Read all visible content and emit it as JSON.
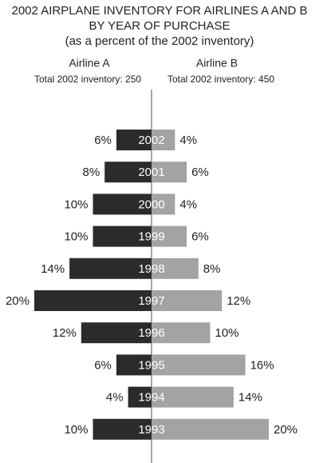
{
  "chart_data": {
    "type": "butterfly",
    "title": [
      "2002 AIRPLANE INVENTORY FOR AIRLINES A AND B",
      "BY YEAR OF PURCHASE"
    ],
    "subtitle": "(as a percent of the 2002 inventory)",
    "categories": [
      "2002",
      "2001",
      "2000",
      "1999",
      "1998",
      "1997",
      "1996",
      "1995",
      "1994",
      "1993"
    ],
    "annotations": [
      "Total 2002 inventory: 250",
      "Total 2002 inventory: 450"
    ],
    "series": [
      {
        "name": "Airline A",
        "color": "#2b2b2b",
        "values": [
          6,
          8,
          10,
          10,
          14,
          20,
          12,
          6,
          4,
          10
        ],
        "value_labels": [
          "6%",
          "8%",
          "10%",
          "10%",
          "14%",
          "20%",
          "12%",
          "6%",
          "4%",
          "10%"
        ]
      },
      {
        "name": "Airline B",
        "color": "#a3a3a3",
        "values": [
          4,
          6,
          4,
          6,
          8,
          12,
          10,
          16,
          14,
          20
        ],
        "value_labels": [
          "4%",
          "6%",
          "4%",
          "6%",
          "8%",
          "12%",
          "10%",
          "16%",
          "14%",
          "20%"
        ]
      }
    ]
  }
}
